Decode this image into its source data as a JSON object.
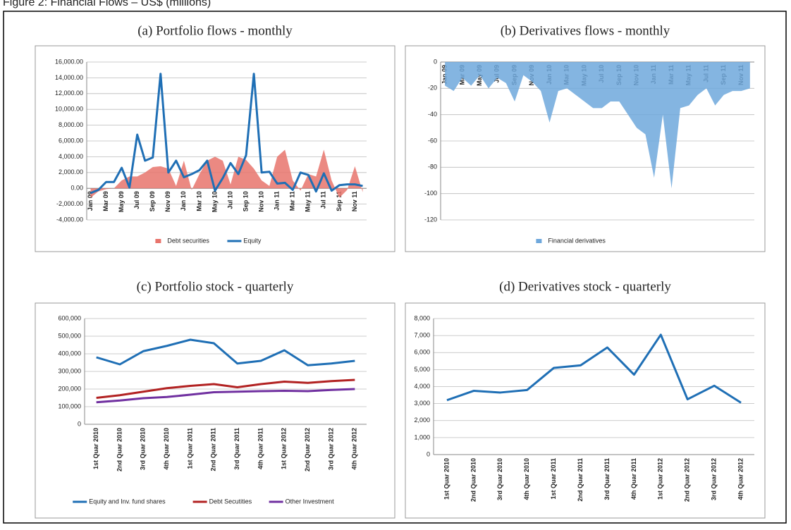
{
  "figure_title": "Figure 2: Financial Flows – US$ (millions)",
  "chart_data": [
    {
      "type": "line",
      "title": "(a) Portfolio flows - monthly",
      "legend": "bottom",
      "grid": true,
      "categories": [
        "Jan 09",
        null,
        "Mar 09",
        null,
        "May 09",
        null,
        "Jul 09",
        null,
        "Sep 09",
        null,
        "Nov 09",
        null,
        "Jan 10",
        null,
        "Mar 10",
        null,
        "May 10",
        null,
        "Jul 10",
        null,
        "Sep 10",
        null,
        "Nov 10",
        null,
        "Jan 11",
        null,
        "Mar 11",
        null,
        "May 11",
        null,
        "Jul 11",
        null,
        "Sep 11",
        null,
        "Nov 11",
        null
      ],
      "ylim": [
        -4000,
        16000
      ],
      "yticks": [
        {
          "value": -4000,
          "label": "-4,000.00"
        },
        {
          "value": -2000,
          "label": "-2,000.00"
        },
        {
          "value": 0,
          "label": "0.00"
        },
        {
          "value": 2000,
          "label": "2,000.00"
        },
        {
          "value": 4000,
          "label": "4,000.00"
        },
        {
          "value": 6000,
          "label": "6,000.00"
        },
        {
          "value": 8000,
          "label": "8,000.00"
        },
        {
          "value": 10000,
          "label": "10,000.00"
        },
        {
          "value": 12000,
          "label": "12,000.00"
        },
        {
          "value": 14000,
          "label": "14,000.00"
        },
        {
          "value": 16000,
          "label": "16,000.00"
        }
      ],
      "series": [
        {
          "name": "Debt securities",
          "kind": "area",
          "color": "#e8746c",
          "values": [
            -1200,
            -400,
            -100,
            0,
            1000,
            1500,
            1500,
            2000,
            2700,
            2800,
            2500,
            300,
            3500,
            -200,
            1800,
            3500,
            4000,
            3500,
            500,
            4000,
            3600,
            2500,
            1000,
            300,
            4000,
            4900,
            1000,
            -300,
            1800,
            1500,
            4900,
            1000,
            -1200,
            -200,
            2800,
            -500
          ]
        },
        {
          "name": "Equity",
          "kind": "line",
          "color": "#1f6fb5",
          "values": [
            -600,
            -200,
            800,
            800,
            2600,
            100,
            6800,
            3500,
            3900,
            14500,
            2000,
            3500,
            1400,
            1800,
            2300,
            3500,
            -300,
            1300,
            3200,
            1800,
            4200,
            14500,
            2000,
            2100,
            600,
            700,
            -200,
            2000,
            1700,
            -400,
            1900,
            -300,
            400,
            500,
            500,
            300
          ]
        }
      ]
    },
    {
      "type": "area",
      "title": "(b) Derivatives flows - monthly",
      "legend": "bottom",
      "grid": true,
      "categories": [
        "Jan 09",
        null,
        "Mar 09",
        null,
        "May 09",
        null,
        "Jul 09",
        null,
        "Sep 09",
        null,
        "Nov 09",
        null,
        "Jan 10",
        null,
        "Mar 10",
        null,
        "May 10",
        null,
        "Jul 10",
        null,
        "Sep 10",
        null,
        "Nov 10",
        null,
        "Jan 11",
        null,
        "Mar 11",
        null,
        "May 11",
        null,
        "Jul 11",
        null,
        "Sep 11",
        null,
        "Nov 11",
        null
      ],
      "ylim": [
        -120,
        0
      ],
      "yticks": [
        -120,
        -100,
        -80,
        -60,
        -40,
        -20,
        0
      ],
      "series": [
        {
          "name": "Financial derivatives",
          "kind": "area",
          "color": "#6fa8dc",
          "values": [
            -18,
            -22,
            -12,
            -18,
            -10,
            -20,
            -12,
            -16,
            -30,
            -10,
            -15,
            -22,
            -46,
            -22,
            -20,
            -25,
            -30,
            -35,
            -35,
            -30,
            -30,
            -40,
            -50,
            -55,
            -88,
            -40,
            -96,
            -35,
            -33,
            -25,
            -20,
            -33,
            -25,
            -22,
            -22,
            -20
          ]
        }
      ]
    },
    {
      "type": "line",
      "title": "(c) Portfolio stock - quarterly",
      "legend": "bottom",
      "grid": true,
      "categories": [
        "1st Quar 2010",
        "2nd Quar 2010",
        "3rd Quar 2010",
        "4th Quar 2010",
        "1st Quar 2011",
        "2nd Quar 2011",
        "3rd Quar 2011",
        "4th Quar 2011",
        "1st Quar 2012",
        "2nd Quar 2012",
        "3rd Quar 2012",
        "4th Quar 2012"
      ],
      "ylim": [
        0,
        600000
      ],
      "yticks": [
        0,
        {
          "value": 100000,
          "label": "100,000"
        },
        {
          "value": 200000,
          "label": "200,000"
        },
        {
          "value": 300000,
          "label": "300,000"
        },
        {
          "value": 400000,
          "label": "400,000"
        },
        {
          "value": 500000,
          "label": "500,000"
        },
        {
          "value": 600000,
          "label": "600,000"
        }
      ],
      "series": [
        {
          "name": "Equity and Inv. fund shares",
          "kind": "line",
          "color": "#1f6fb5",
          "values": [
            380000,
            340000,
            415000,
            445000,
            480000,
            460000,
            345000,
            360000,
            420000,
            335000,
            345000,
            360000
          ]
        },
        {
          "name": "Debt Secutities",
          "kind": "line",
          "color": "#b22222",
          "values": [
            150000,
            165000,
            185000,
            205000,
            218000,
            228000,
            210000,
            228000,
            242000,
            235000,
            245000,
            252000
          ]
        },
        {
          "name": "Other Investment",
          "kind": "line",
          "color": "#7030a0",
          "values": [
            125000,
            135000,
            148000,
            155000,
            168000,
            182000,
            185000,
            188000,
            190000,
            188000,
            195000,
            200000
          ]
        }
      ]
    },
    {
      "type": "line",
      "title": "(d) Derivatives stock - quarterly",
      "grid": true,
      "categories": [
        "1st Quar 2010",
        "2nd Quar 2010",
        "3rd Quar 2010",
        "4th Quar 2010",
        "1st Quar 2011",
        "2nd Quar 2011",
        "3rd Quar 2011",
        "4th Quar 2011",
        "1st Quar 2012",
        "2nd Quar 2012",
        "3rd Quar 2012",
        "4th Quar 2012"
      ],
      "ylim": [
        0,
        8000
      ],
      "yticks": [
        0,
        {
          "value": 1000,
          "label": "1,000"
        },
        {
          "value": 2000,
          "label": "2,000"
        },
        {
          "value": 3000,
          "label": "3,000"
        },
        {
          "value": 4000,
          "label": "4,000"
        },
        {
          "value": 5000,
          "label": "5,000"
        },
        {
          "value": 6000,
          "label": "6,000"
        },
        {
          "value": 7000,
          "label": "7,000"
        },
        {
          "value": 8000,
          "label": "8,000"
        }
      ],
      "color": "#1f6fb5",
      "values": [
        3200,
        3750,
        3650,
        3800,
        5100,
        5250,
        6300,
        4700,
        7050,
        3250,
        4050,
        3050
      ]
    }
  ]
}
